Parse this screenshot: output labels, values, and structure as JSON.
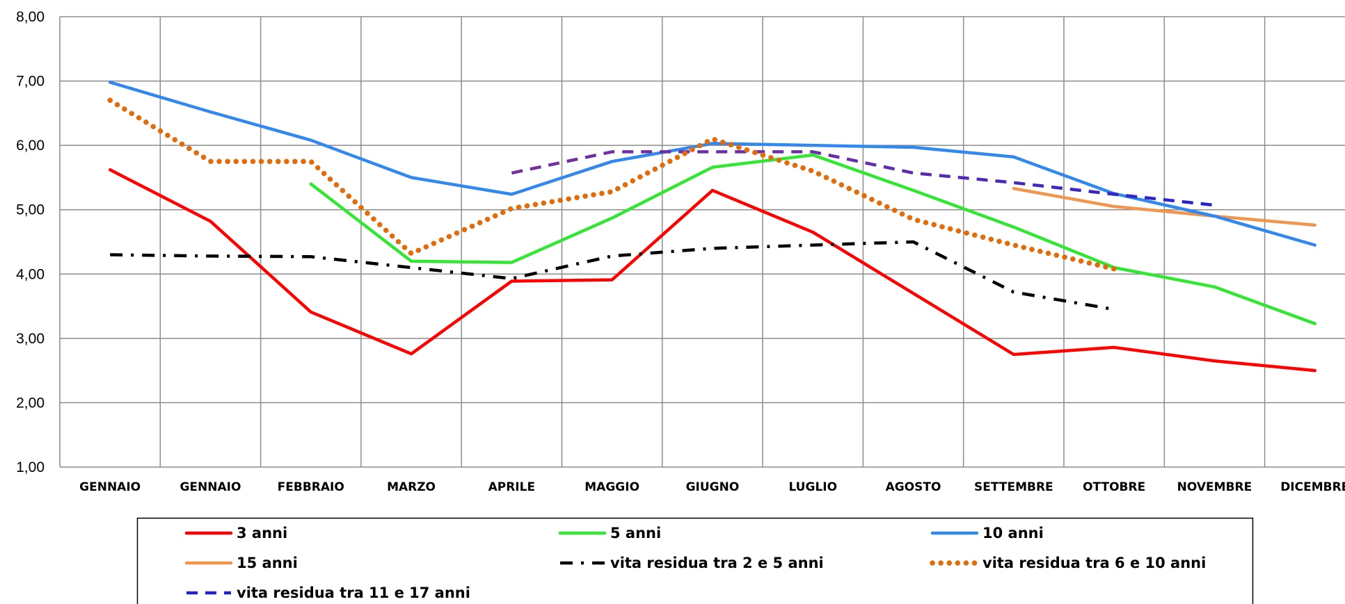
{
  "chart_data": {
    "type": "line",
    "categories": [
      "GENNAIO",
      "GENNAIO",
      "FEBBRAIO",
      "MARZO",
      "APRILE",
      "MAGGIO",
      "GIUGNO",
      "LUGLIO",
      "AGOSTO",
      "SETTEMBRE",
      "OTTOBRE",
      "NOVEMBRE",
      "DICEMBRE"
    ],
    "ylim": [
      1,
      8
    ],
    "yticks": [
      "1,00",
      "2,00",
      "3,00",
      "4,00",
      "5,00",
      "6,00",
      "7,00",
      "8,00"
    ],
    "grid": true,
    "legend_position": "bottom",
    "series": [
      {
        "name": "3 anni",
        "color": "#ff0000",
        "style": "solid",
        "values": [
          5.62,
          4.82,
          3.41,
          2.76,
          3.89,
          3.91,
          5.3,
          4.65,
          3.7,
          2.75,
          2.86,
          2.65,
          2.5
        ]
      },
      {
        "name": "5 anni",
        "color": "#33e633",
        "style": "solid",
        "values": [
          null,
          null,
          5.4,
          4.2,
          4.18,
          4.87,
          5.66,
          5.85,
          5.3,
          4.73,
          4.1,
          3.8,
          3.23
        ]
      },
      {
        "name": "10 anni",
        "color": "#3388ee",
        "style": "solid",
        "values": [
          6.98,
          6.52,
          6.08,
          5.5,
          5.24,
          5.75,
          6.03,
          6.0,
          5.97,
          5.82,
          5.25,
          4.9,
          4.45
        ]
      },
      {
        "name": "15 anni",
        "color": "#f0964e",
        "style": "solid",
        "values": [
          null,
          null,
          null,
          null,
          null,
          null,
          null,
          null,
          null,
          5.33,
          5.05,
          4.9,
          4.76
        ]
      },
      {
        "name": "vita residua tra 2 e 5 anni",
        "color": "#000000",
        "style": "dashdot",
        "values": [
          4.3,
          4.28,
          4.27,
          4.1,
          3.93,
          4.28,
          4.4,
          4.45,
          4.5,
          3.72,
          3.45,
          null,
          null
        ]
      },
      {
        "name": "vita residua tra 6 e 10 anni",
        "color": "#e36c0a",
        "style": "dotted",
        "values": [
          6.7,
          5.75,
          5.75,
          4.32,
          5.02,
          5.28,
          6.1,
          5.6,
          4.85,
          4.45,
          4.08,
          null,
          null
        ]
      },
      {
        "name": "vita residua tra 11 e 17 anni",
        "color": "#2222cc",
        "color_start": "#7030a0",
        "style": "dashed",
        "values": [
          null,
          null,
          null,
          null,
          5.57,
          5.9,
          5.9,
          5.9,
          5.57,
          5.42,
          5.24,
          5.07,
          null
        ]
      }
    ]
  }
}
